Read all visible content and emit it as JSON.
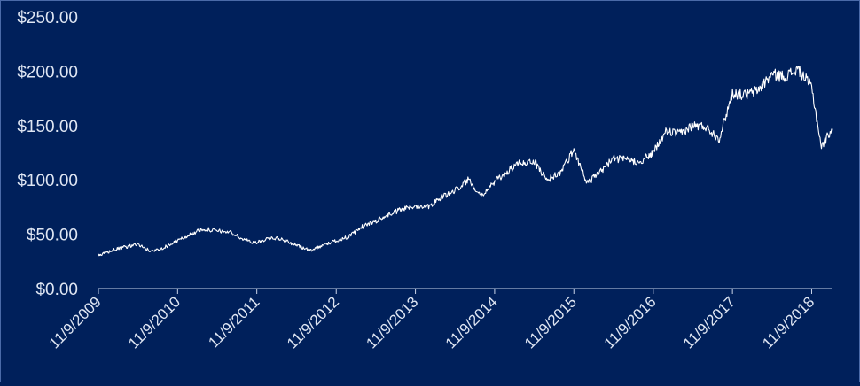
{
  "chart_data": {
    "type": "line",
    "title": "",
    "xlabel": "",
    "ylabel": "",
    "ylim": [
      0,
      250
    ],
    "yticks": [
      0,
      50,
      100,
      150,
      200,
      250
    ],
    "ytick_labels": [
      "$0.00",
      "$50.00",
      "$100.00",
      "$150.00",
      "$200.00",
      "$250.00"
    ],
    "xlim": [
      "2009-11-09",
      "2019-02-09"
    ],
    "xticks": [
      "2009-11-09",
      "2010-11-09",
      "2011-11-09",
      "2012-11-09",
      "2013-11-09",
      "2014-11-09",
      "2015-11-09",
      "2016-11-09",
      "2017-11-09",
      "2018-11-09"
    ],
    "xtick_labels": [
      "11/9/2009",
      "11/9/2010",
      "11/9/2011",
      "11/9/2012",
      "11/9/2013",
      "11/9/2014",
      "11/9/2015",
      "11/9/2016",
      "11/9/2017",
      "11/9/2018"
    ],
    "grid": false,
    "series": [
      {
        "color": "#ffffff",
        "x": [
          "2009-11-09",
          "2010-01-09",
          "2010-03-09",
          "2010-05-09",
          "2010-07-09",
          "2010-09-09",
          "2010-11-09",
          "2011-01-09",
          "2011-03-09",
          "2011-05-09",
          "2011-07-09",
          "2011-09-09",
          "2011-11-09",
          "2012-01-09",
          "2012-03-09",
          "2012-05-09",
          "2012-07-09",
          "2012-09-09",
          "2012-11-09",
          "2013-01-09",
          "2013-03-09",
          "2013-05-09",
          "2013-07-09",
          "2013-09-09",
          "2013-11-09",
          "2014-01-09",
          "2014-03-09",
          "2014-05-09",
          "2014-07-09",
          "2014-09-09",
          "2014-11-09",
          "2015-01-09",
          "2015-03-09",
          "2015-05-09",
          "2015-07-09",
          "2015-09-09",
          "2015-11-09",
          "2016-01-09",
          "2016-03-09",
          "2016-05-09",
          "2016-07-09",
          "2016-09-09",
          "2016-11-09",
          "2017-01-09",
          "2017-03-09",
          "2017-05-09",
          "2017-07-09",
          "2017-09-09",
          "2017-11-09",
          "2018-01-09",
          "2018-03-09",
          "2018-05-09",
          "2018-07-09",
          "2018-09-09",
          "2018-11-09",
          "2018-12-24",
          "2019-02-09"
        ],
        "values": [
          30,
          35,
          38,
          41,
          34,
          38,
          44,
          50,
          55,
          53,
          52,
          45,
          42,
          47,
          45,
          40,
          35,
          40,
          44,
          48,
          57,
          62,
          68,
          73,
          76,
          76,
          84,
          90,
          100,
          86,
          98,
          108,
          116,
          117,
          100,
          107,
          128,
          97,
          107,
          120,
          118,
          117,
          125,
          145,
          142,
          150,
          149,
          138,
          180,
          178,
          183,
          197,
          195,
          202,
          185,
          130,
          147
        ]
      }
    ]
  }
}
